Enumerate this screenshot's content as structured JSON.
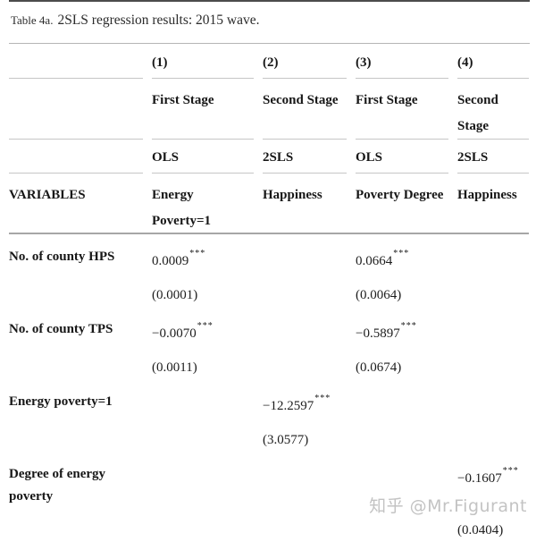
{
  "title": {
    "label": "Table 4a.",
    "text": "2SLS regression results: 2015 wave."
  },
  "watermark": "知乎 @Mr.Figurant",
  "table": {
    "header_rows": [
      {
        "cells": [
          "",
          "(1)",
          "(2)",
          "(3)",
          "(4)"
        ]
      },
      {
        "cells": [
          "",
          "First Stage",
          "Second Stage",
          "First Stage",
          "Second Stage"
        ]
      },
      {
        "cells": [
          "",
          "OLS",
          "2SLS",
          "OLS",
          "2SLS"
        ]
      },
      {
        "cells": [
          "VARIABLES",
          "Energy Poverty=1",
          "Happiness",
          "Poverty Degree",
          "Happiness"
        ]
      }
    ],
    "body_rows": [
      {
        "label": "No. of county HPS",
        "cells": [
          {
            "value": "0.0009",
            "stars": "***"
          },
          null,
          {
            "value": "0.0664",
            "stars": "***"
          },
          null
        ]
      },
      {
        "label": "",
        "cells": [
          {
            "value": "(0.0001)",
            "stars": ""
          },
          null,
          {
            "value": "(0.0064)",
            "stars": ""
          },
          null
        ]
      },
      {
        "label": "No. of county TPS",
        "cells": [
          {
            "value": "−0.0070",
            "stars": "***"
          },
          null,
          {
            "value": "−0.5897",
            "stars": "***"
          },
          null
        ]
      },
      {
        "label": "",
        "cells": [
          {
            "value": "(0.0011)",
            "stars": ""
          },
          null,
          {
            "value": "(0.0674)",
            "stars": ""
          },
          null
        ]
      },
      {
        "label": "Energy poverty=1",
        "cells": [
          null,
          {
            "value": "−12.2597",
            "stars": "***"
          },
          null,
          null
        ]
      },
      {
        "label": "",
        "cells": [
          null,
          {
            "value": "(3.0577)",
            "stars": ""
          },
          null,
          null
        ]
      },
      {
        "label": "Degree of energy poverty",
        "cells": [
          null,
          null,
          null,
          {
            "value": "−0.1607",
            "stars": "***"
          }
        ]
      },
      {
        "label": "",
        "cells": [
          null,
          null,
          null,
          {
            "value": "(0.0404)",
            "stars": ""
          }
        ]
      }
    ]
  }
}
